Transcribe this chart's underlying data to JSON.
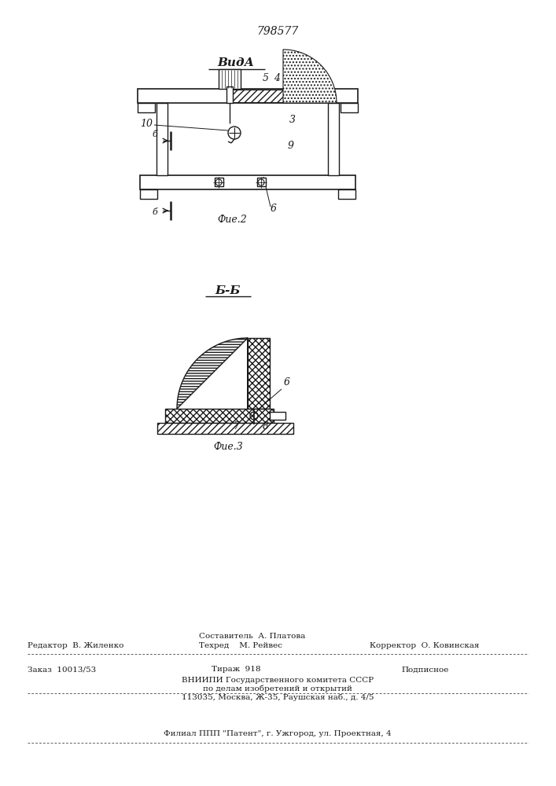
{
  "patent_number": "798577",
  "fig2_title": "ВидА",
  "fig2_caption": "Фие.2",
  "fig3_caption": "Фие.3",
  "section_label": "Б-Б",
  "line_color": "#1a1a1a"
}
